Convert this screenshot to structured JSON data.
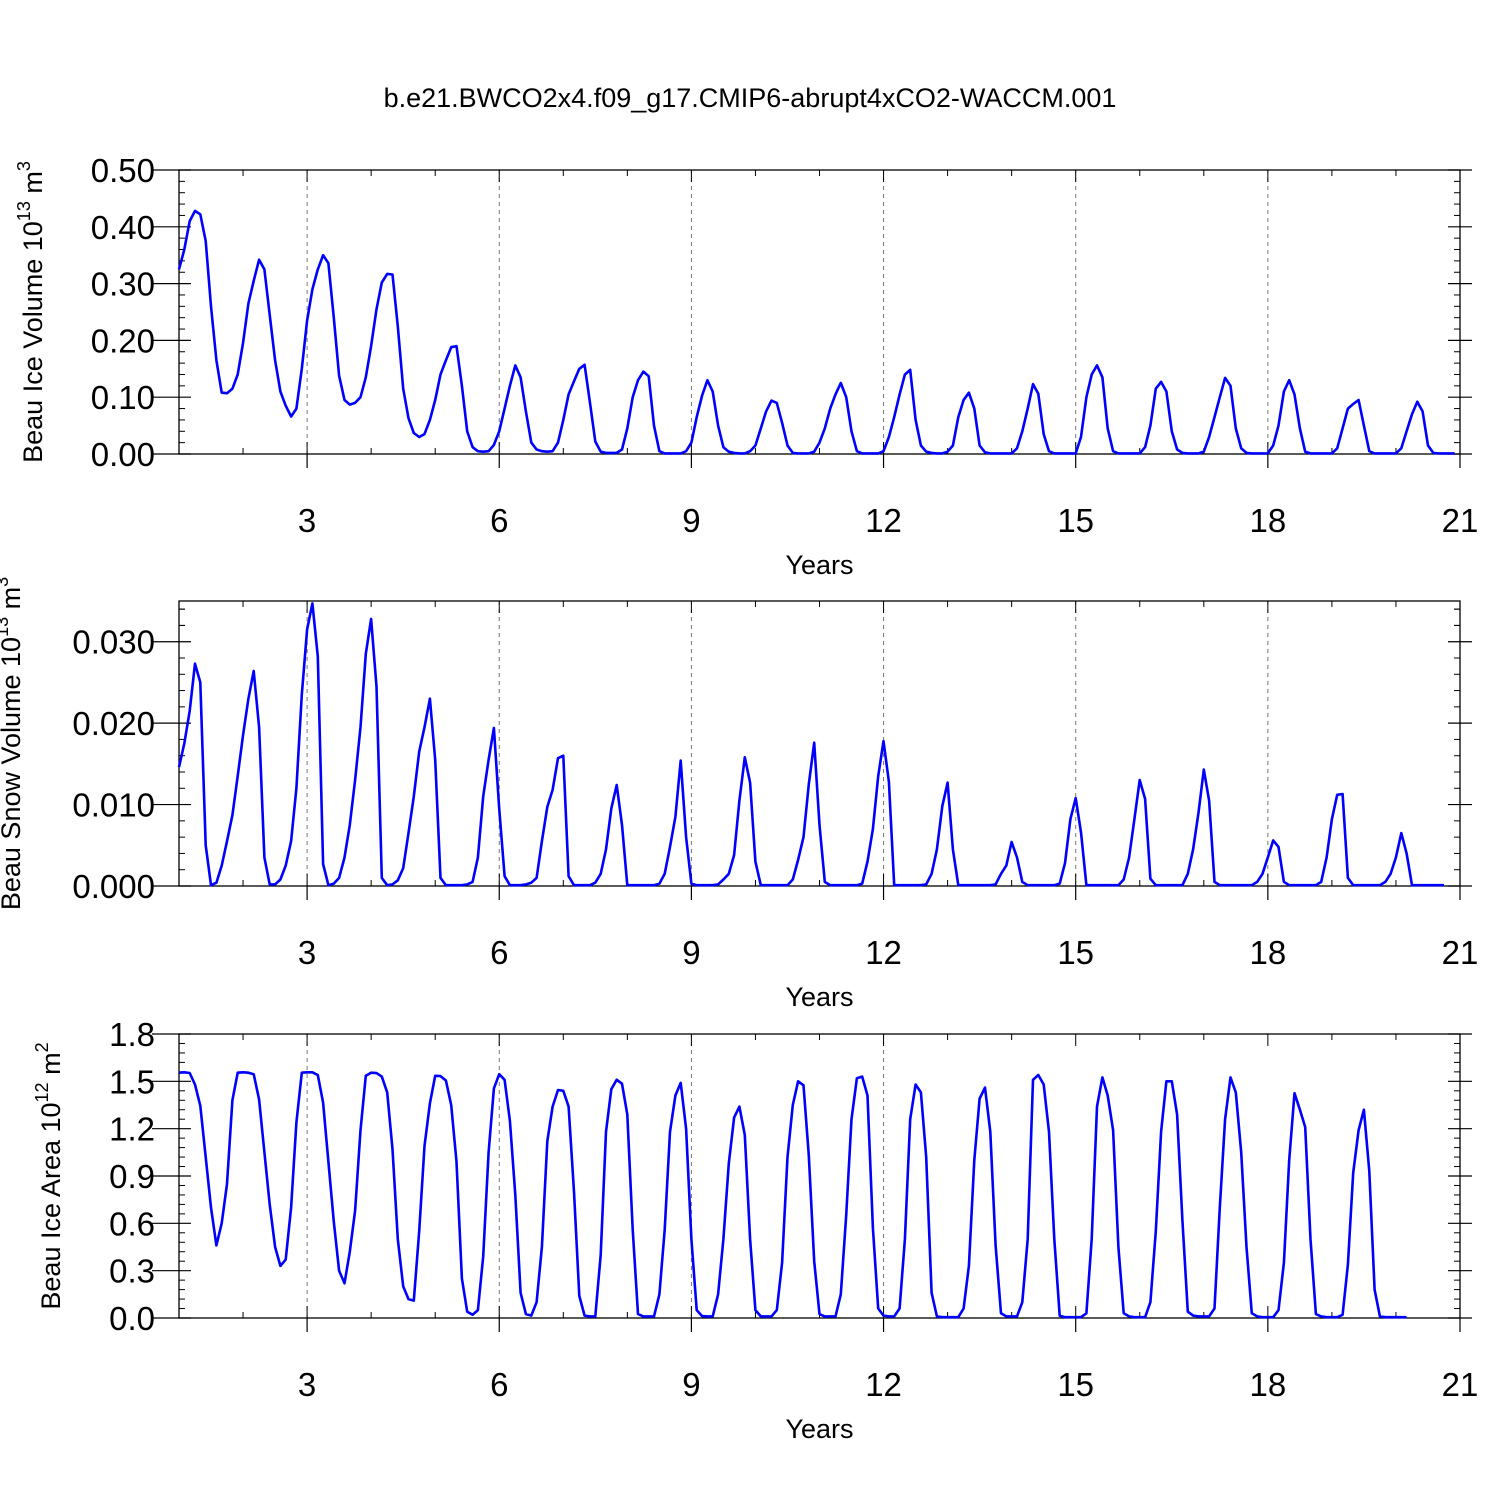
{
  "figure": {
    "title": "b.e21.BWCO2x4.f09_g17.CMIP6-abrupt4xCO2-WACCM.001"
  },
  "chart_data": [
    {
      "type": "line",
      "xlabel": "Years",
      "ylabel": "Beau Ice Volume 10^13 m^3",
      "ylabel_parts": {
        "base": "Beau Ice Volume 10",
        "exp": "13",
        "unit": " m",
        "unit_exp": "3"
      },
      "xlim": [
        1,
        21
      ],
      "ylim": [
        0,
        0.5
      ],
      "xticks": [
        3,
        6,
        9,
        12,
        15,
        18,
        21
      ],
      "yticks": [
        0.0,
        0.1,
        0.2,
        0.3,
        0.4,
        0.5
      ],
      "ytick_labels": [
        "0.00",
        "0.10",
        "0.20",
        "0.30",
        "0.40",
        "0.50"
      ],
      "vgrid": [
        3,
        6,
        9,
        12,
        15,
        18
      ],
      "grid_style": "dashed vertical at x ticks",
      "line_color": "#0000ff",
      "x_start": 1.0,
      "x_step": 0.0833333,
      "values": [
        0.325,
        0.36,
        0.41,
        0.428,
        0.422,
        0.375,
        0.26,
        0.165,
        0.108,
        0.107,
        0.115,
        0.14,
        0.195,
        0.265,
        0.305,
        0.342,
        0.325,
        0.245,
        0.165,
        0.11,
        0.085,
        0.066,
        0.08,
        0.15,
        0.235,
        0.29,
        0.325,
        0.35,
        0.336,
        0.24,
        0.138,
        0.095,
        0.087,
        0.09,
        0.1,
        0.135,
        0.19,
        0.255,
        0.302,
        0.317,
        0.316,
        0.225,
        0.115,
        0.063,
        0.037,
        0.03,
        0.035,
        0.06,
        0.095,
        0.14,
        0.165,
        0.188,
        0.19,
        0.12,
        0.04,
        0.012,
        0.005,
        0.004,
        0.005,
        0.016,
        0.04,
        0.08,
        0.12,
        0.156,
        0.135,
        0.075,
        0.02,
        0.008,
        0.005,
        0.004,
        0.005,
        0.02,
        0.06,
        0.105,
        0.128,
        0.15,
        0.157,
        0.09,
        0.022,
        0.004,
        0.002,
        0.002,
        0.002,
        0.008,
        0.045,
        0.1,
        0.13,
        0.145,
        0.137,
        0.05,
        0.005,
        0.001,
        0.001,
        0.001,
        0.001,
        0.005,
        0.02,
        0.065,
        0.103,
        0.13,
        0.11,
        0.05,
        0.012,
        0.004,
        0.002,
        0.001,
        0.001,
        0.005,
        0.015,
        0.045,
        0.075,
        0.094,
        0.09,
        0.055,
        0.015,
        0.002,
        0.001,
        0.001,
        0.001,
        0.004,
        0.02,
        0.045,
        0.08,
        0.105,
        0.125,
        0.1,
        0.04,
        0.005,
        0.001,
        0.001,
        0.001,
        0.001,
        0.005,
        0.03,
        0.065,
        0.105,
        0.14,
        0.148,
        0.06,
        0.015,
        0.004,
        0.002,
        0.001,
        0.001,
        0.004,
        0.015,
        0.065,
        0.095,
        0.108,
        0.08,
        0.015,
        0.003,
        0.001,
        0.001,
        0.001,
        0.001,
        0.001,
        0.01,
        0.04,
        0.08,
        0.123,
        0.106,
        0.035,
        0.005,
        0.001,
        0.001,
        0.001,
        0.001,
        0.001,
        0.03,
        0.1,
        0.14,
        0.156,
        0.135,
        0.045,
        0.005,
        0.001,
        0.001,
        0.001,
        0.001,
        0.001,
        0.012,
        0.05,
        0.115,
        0.127,
        0.11,
        0.04,
        0.008,
        0.002,
        0.001,
        0.001,
        0.001,
        0.004,
        0.03,
        0.065,
        0.1,
        0.134,
        0.12,
        0.045,
        0.01,
        0.002,
        0.001,
        0.001,
        0.001,
        0.001,
        0.015,
        0.05,
        0.11,
        0.13,
        0.105,
        0.045,
        0.004,
        0.001,
        0.001,
        0.001,
        0.001,
        0.001,
        0.01,
        0.045,
        0.08,
        0.088,
        0.095,
        0.05,
        0.005,
        0.001,
        0.001,
        0.001,
        0.001,
        0.001,
        0.01,
        0.04,
        0.07,
        0.092,
        0.075,
        0.015,
        0.002,
        0.001,
        0.001,
        0.001,
        0.001
      ]
    },
    {
      "type": "line",
      "xlabel": "Years",
      "ylabel": "Beau Snow Volume 10^13 m^3",
      "ylabel_parts": {
        "base": "Beau Snow Volume 10",
        "exp": "13",
        "unit": " m",
        "unit_exp": "3"
      },
      "xlim": [
        1,
        21
      ],
      "ylim": [
        0,
        0.035
      ],
      "xticks": [
        3,
        6,
        9,
        12,
        15,
        18,
        21
      ],
      "yticks": [
        0.0,
        0.01,
        0.02,
        0.03
      ],
      "ytick_labels": [
        "0.000",
        "0.010",
        "0.020",
        "0.030"
      ],
      "vgrid": [
        3,
        6,
        9,
        12,
        15,
        18
      ],
      "grid_style": "dashed vertical at x ticks",
      "line_color": "#0000ff",
      "x_start": 1.0,
      "x_step": 0.0833333,
      "values": [
        0.0146,
        0.0175,
        0.0215,
        0.0273,
        0.025,
        0.005,
        0.0001,
        0.0004,
        0.0025,
        0.0055,
        0.0087,
        0.0135,
        0.0185,
        0.023,
        0.0264,
        0.0195,
        0.0035,
        0.0002,
        0.0002,
        0.0008,
        0.0025,
        0.0055,
        0.012,
        0.0235,
        0.0315,
        0.0347,
        0.0282,
        0.0027,
        0.0001,
        0.0003,
        0.001,
        0.0035,
        0.0075,
        0.013,
        0.0195,
        0.0285,
        0.0328,
        0.0245,
        0.001,
        0.0001,
        0.0002,
        0.0007,
        0.0022,
        0.0065,
        0.011,
        0.0165,
        0.0195,
        0.023,
        0.0155,
        0.001,
        0.0001,
        0.0001,
        0.0001,
        0.0001,
        0.0002,
        0.0005,
        0.0035,
        0.011,
        0.0155,
        0.0194,
        0.0095,
        0.0012,
        0.0001,
        0.0001,
        0.0001,
        0.0002,
        0.0004,
        0.001,
        0.0055,
        0.0097,
        0.0118,
        0.0157,
        0.016,
        0.0012,
        0.0001,
        0.0001,
        0.0001,
        0.0001,
        0.0004,
        0.0015,
        0.0045,
        0.0095,
        0.0124,
        0.0075,
        0.0001,
        0.0001,
        0.0001,
        0.0001,
        0.0001,
        0.0001,
        0.0003,
        0.0015,
        0.0048,
        0.0085,
        0.0154,
        0.006,
        0.0003,
        0.0001,
        0.0001,
        0.0001,
        0.0001,
        0.0002,
        0.0008,
        0.0015,
        0.0038,
        0.0105,
        0.0158,
        0.0127,
        0.003,
        0.0001,
        0.0001,
        0.0001,
        0.0001,
        0.0001,
        0.0001,
        0.0008,
        0.0032,
        0.006,
        0.0125,
        0.0176,
        0.0075,
        0.0005,
        0.0001,
        0.0001,
        0.0001,
        0.0001,
        0.0001,
        0.0001,
        0.0003,
        0.003,
        0.007,
        0.0135,
        0.0178,
        0.0128,
        0.0001,
        0.0001,
        0.0001,
        0.0001,
        0.0001,
        0.0001,
        0.0002,
        0.0015,
        0.0045,
        0.0098,
        0.0127,
        0.0045,
        0.0001,
        0.0001,
        0.0001,
        0.0001,
        0.0001,
        0.0001,
        0.0001,
        0.0002,
        0.0015,
        0.0025,
        0.0054,
        0.0035,
        0.0005,
        0.0001,
        0.0001,
        0.0001,
        0.0001,
        0.0001,
        0.0001,
        0.0003,
        0.0028,
        0.0082,
        0.0108,
        0.0066,
        0.0001,
        0.0001,
        0.0001,
        0.0001,
        0.0001,
        0.0001,
        0.0001,
        0.0008,
        0.0035,
        0.0082,
        0.013,
        0.0107,
        0.0009,
        0.0001,
        0.0001,
        0.0001,
        0.0001,
        0.0001,
        0.0001,
        0.0015,
        0.0045,
        0.009,
        0.0143,
        0.0105,
        0.0005,
        0.0001,
        0.0001,
        0.0001,
        0.0001,
        0.0001,
        0.0001,
        0.0001,
        0.0005,
        0.0015,
        0.0035,
        0.0056,
        0.0048,
        0.0005,
        0.0001,
        0.0001,
        0.0001,
        0.0001,
        0.0001,
        0.0001,
        0.0005,
        0.0035,
        0.0082,
        0.0112,
        0.0113,
        0.001,
        0.0001,
        0.0001,
        0.0001,
        0.0001,
        0.0001,
        0.0001,
        0.0005,
        0.0015,
        0.0035,
        0.0065,
        0.004,
        0.0001,
        0.0001,
        0.0001,
        0.0001,
        0.0001,
        0.0001,
        0.0001
      ]
    },
    {
      "type": "line",
      "xlabel": "Years",
      "ylabel": "Beau Ice Area 10^12 m^2",
      "ylabel_parts": {
        "base": "Beau Ice Area 10",
        "exp": "12",
        "unit": " m",
        "unit_exp": "2"
      },
      "xlim": [
        1,
        21
      ],
      "ylim": [
        0,
        1.8
      ],
      "xticks": [
        3,
        6,
        9,
        12,
        15,
        18,
        21
      ],
      "yticks": [
        0.0,
        0.3,
        0.6,
        0.9,
        1.2,
        1.5,
        1.8
      ],
      "ytick_labels": [
        "0.0",
        "0.3",
        "0.6",
        "0.9",
        "1.2",
        "1.5",
        "1.8"
      ],
      "vgrid": [
        3,
        6,
        9,
        12
      ],
      "grid_style": "dashed vertical at x ticks",
      "line_color": "#0000ff",
      "x_start": 1.0,
      "x_step": 0.0833333,
      "values": [
        1.555,
        1.557,
        1.553,
        1.48,
        1.345,
        1.02,
        0.7,
        0.46,
        0.6,
        0.85,
        1.38,
        1.555,
        1.557,
        1.555,
        1.545,
        1.385,
        1.05,
        0.72,
        0.45,
        0.33,
        0.37,
        0.7,
        1.24,
        1.555,
        1.557,
        1.557,
        1.54,
        1.365,
        0.99,
        0.61,
        0.3,
        0.22,
        0.42,
        0.68,
        1.19,
        1.535,
        1.555,
        1.552,
        1.53,
        1.43,
        1.07,
        0.5,
        0.2,
        0.12,
        0.11,
        0.55,
        1.09,
        1.36,
        1.535,
        1.533,
        1.505,
        1.35,
        0.99,
        0.25,
        0.04,
        0.02,
        0.05,
        0.39,
        1.05,
        1.455,
        1.545,
        1.51,
        1.25,
        0.78,
        0.16,
        0.025,
        0.015,
        0.1,
        0.45,
        1.12,
        1.34,
        1.445,
        1.44,
        1.34,
        0.8,
        0.14,
        0.015,
        0.01,
        0.01,
        0.4,
        1.18,
        1.45,
        1.51,
        1.485,
        1.29,
        0.56,
        0.025,
        0.01,
        0.01,
        0.01,
        0.15,
        0.56,
        1.18,
        1.41,
        1.49,
        1.2,
        0.5,
        0.05,
        0.012,
        0.01,
        0.01,
        0.15,
        0.5,
        0.98,
        1.27,
        1.34,
        1.16,
        0.5,
        0.05,
        0.01,
        0.01,
        0.01,
        0.05,
        0.35,
        1.02,
        1.35,
        1.5,
        1.475,
        1.03,
        0.36,
        0.025,
        0.01,
        0.01,
        0.01,
        0.15,
        0.65,
        1.26,
        1.52,
        1.53,
        1.41,
        0.57,
        0.06,
        0.015,
        0.01,
        0.01,
        0.06,
        0.5,
        1.26,
        1.48,
        1.43,
        1.02,
        0.16,
        0.01,
        0.005,
        0.005,
        0.005,
        0.005,
        0.06,
        0.33,
        1.0,
        1.39,
        1.46,
        1.18,
        0.46,
        0.03,
        0.01,
        0.01,
        0.01,
        0.1,
        0.5,
        1.51,
        1.54,
        1.48,
        1.18,
        0.5,
        0.015,
        0.005,
        0.005,
        0.005,
        0.005,
        0.03,
        0.5,
        1.34,
        1.525,
        1.41,
        1.19,
        0.45,
        0.03,
        0.01,
        0.005,
        0.005,
        0.005,
        0.1,
        0.55,
        1.18,
        1.5,
        1.5,
        1.29,
        0.62,
        0.04,
        0.015,
        0.01,
        0.01,
        0.01,
        0.06,
        0.7,
        1.26,
        1.525,
        1.43,
        1.05,
        0.45,
        0.03,
        0.01,
        0.005,
        0.005,
        0.005,
        0.05,
        0.35,
        1.0,
        1.425,
        1.32,
        1.21,
        0.5,
        0.025,
        0.01,
        0.005,
        0.005,
        0.005,
        0.02,
        0.34,
        0.92,
        1.19,
        1.32,
        0.93,
        0.18,
        0.01,
        0.005,
        0.005,
        0.005,
        0.005,
        0.005
      ]
    }
  ]
}
